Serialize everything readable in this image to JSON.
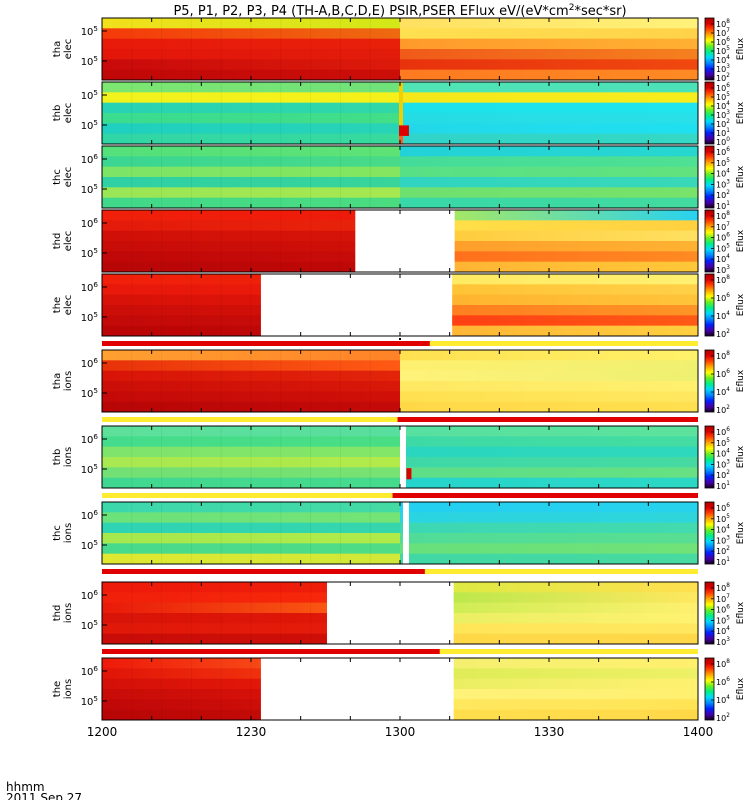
{
  "chart_data": {
    "type": "heatmap",
    "title": "P5, P1, P2, P3, P4 (TH-A,B,C,D,E) PSIR,PSER EFlux eV/(eV*cm",
    "title_sup": "2",
    "title_tail": "*sec*sr)",
    "x_tick_labels": [
      "1200",
      "1230",
      "1300",
      "1330",
      "1400"
    ],
    "x_ticks_min": [
      0,
      30,
      60,
      90,
      120
    ],
    "x_range_min": [
      0,
      120
    ],
    "x_caption": "hhmm",
    "date_caption": "2011 Sep 27",
    "colorbar_label": "Eflux",
    "panels": [
      {
        "name": "tha elec",
        "y_labels": [
          {
            "base": "10",
            "exp": "5"
          },
          {
            "base": "10",
            "exp": "5"
          }
        ],
        "gap_min": null,
        "left": {
          "c": "#dd1208",
          "bands": [
            [
              "#f2e01c",
              "#d2e818"
            ],
            [
              "#f53a0a",
              "#ee6a10"
            ],
            [
              "#e81a0a",
              "#e8200a"
            ],
            [
              "#e3160a",
              "#e21c0a"
            ],
            [
              "#c80a0a",
              "#dd1a0a"
            ],
            [
              "#c00808",
              "#cc0e08"
            ]
          ]
        },
        "right": {
          "c": "#fff27a",
          "bands": [
            [
              "#ffe060",
              "#fff27a"
            ],
            [
              "#ffe050",
              "#ffd24a"
            ],
            [
              "#ff9a2a",
              "#ffb032"
            ],
            [
              "#f05a1a",
              "#f5801e"
            ],
            [
              "#e8320d",
              "#f0480f"
            ],
            [
              "#ff7a20",
              "#ff8a24"
            ]
          ]
        },
        "spikes": []
      },
      {
        "name": "thb elec",
        "y_labels": [
          {
            "base": "10",
            "exp": "5"
          },
          {
            "base": "10",
            "exp": "5"
          }
        ],
        "gap_min": null,
        "left": {
          "c": "#3fe08a",
          "bands": [
            [
              "#7de670",
              "#70e27a"
            ],
            [
              "#f2f21c",
              "#f5f01a"
            ],
            [
              "#28d2b4",
              "#30d8a8"
            ],
            [
              "#3adc90",
              "#42de88"
            ],
            [
              "#1fd0c0",
              "#28d4b6"
            ],
            [
              "#30d6a6",
              "#38da9c"
            ]
          ]
        },
        "right": {
          "c": "#2ee0e0",
          "bands": [
            [
              "#50e4b4",
              "#4ce2b8"
            ],
            [
              "#f5e81a",
              "#f7ec1c"
            ],
            [
              "#1ce0ea",
              "#20e4ee"
            ],
            [
              "#26dce4",
              "#2ae0e8"
            ],
            [
              "#22d8e8",
              "#20e0f0"
            ],
            [
              "#30d4c8",
              "#34d8c4"
            ]
          ]
        },
        "spikes": [
          {
            "x": 59.8,
            "w": 0.8,
            "c": "#f0d000"
          },
          {
            "x": 59.8,
            "w": 2,
            "y0": 0.7,
            "y1": 0.87,
            "c": "#e00000"
          },
          {
            "x": 59.8,
            "w": 0.8,
            "y0": 0.87,
            "y1": 1,
            "c": "#ff6020"
          }
        ]
      },
      {
        "name": "thc elec",
        "y_labels": [
          {
            "base": "10",
            "exp": "6"
          },
          {
            "base": "10",
            "exp": "5"
          }
        ],
        "gap_min": null,
        "left": {
          "c": "#40de8c",
          "bands": [
            [
              "#54e07a",
              "#5ee276"
            ],
            [
              "#3ad692",
              "#48da88"
            ],
            [
              "#7ce466",
              "#84e660"
            ],
            [
              "#2ed0a4",
              "#38d49a"
            ],
            [
              "#9ae656",
              "#a6e850"
            ],
            [
              "#40d88a",
              "#4cdc80"
            ]
          ]
        },
        "right": {
          "c": "#38d8a8",
          "bands": [
            [
              "#22d2d8",
              "#28d6d0"
            ],
            [
              "#44dc9a",
              "#4ee094"
            ],
            [
              "#58e086",
              "#62e27e"
            ],
            [
              "#30d4c0",
              "#38d8b8"
            ],
            [
              "#6ee070",
              "#78e26a"
            ],
            [
              "#38d8a8",
              "#42da9e"
            ]
          ]
        },
        "spikes": []
      },
      {
        "name": "thd elec",
        "y_labels": [
          {
            "base": "10",
            "exp": "6"
          },
          {
            "base": "10",
            "exp": "5"
          }
        ],
        "gap_min": [
          51,
          71
        ],
        "left": {
          "c": "#d20c08",
          "bands": [
            [
              "#f0200a",
              "#ee1a0a"
            ],
            [
              "#e41a0a",
              "#e8240a"
            ],
            [
              "#d01008",
              "#d81408"
            ],
            [
              "#c80c08",
              "#d01008"
            ],
            [
              "#c00808",
              "#c80c08"
            ],
            [
              "#b80606",
              "#c00808"
            ]
          ]
        },
        "right": {
          "c": "#ffd040",
          "bands": [
            [
              "#c0ec48",
              "#28d2f0"
            ],
            [
              "#ffe24a",
              "#ffd040"
            ],
            [
              "#ffc836",
              "#ffe060"
            ],
            [
              "#ff9a2a",
              "#ffb232"
            ],
            [
              "#ff6a1a",
              "#ff8a22"
            ],
            [
              "#ffb032",
              "#ffc838"
            ]
          ]
        },
        "spikes": []
      },
      {
        "name": "the elec",
        "y_labels": [
          {
            "base": "10",
            "exp": "6"
          },
          {
            "base": "10",
            "exp": "5"
          }
        ],
        "gap_min": [
          32,
          70.5
        ],
        "left": {
          "c": "#d20c08",
          "bands": [
            [
              "#f0200a",
              "#ee200a"
            ],
            [
              "#e8180a",
              "#ea1c0a"
            ],
            [
              "#d81208",
              "#e01408"
            ],
            [
              "#cc0e08",
              "#d41008"
            ],
            [
              "#c40a08",
              "#c80c08"
            ],
            [
              "#ba0606",
              "#c20808"
            ]
          ]
        },
        "right": {
          "c": "#ffd040",
          "bands": [
            [
              "#ffe860",
              "#fff070"
            ],
            [
              "#ffc032",
              "#ffd048"
            ],
            [
              "#ffb02c",
              "#ffc43a"
            ],
            [
              "#ff7a1e",
              "#ff9426"
            ],
            [
              "#ff3a12",
              "#ff5a16"
            ],
            [
              "#ffb032",
              "#ffd040"
            ]
          ]
        },
        "spikes": []
      },
      {
        "name": "tha ions",
        "y_labels": [
          {
            "base": "10",
            "exp": "6"
          },
          {
            "base": "10",
            "exp": "5"
          }
        ],
        "gap_min": null,
        "left": {
          "c": "#d21008",
          "bands": [
            [
              "#ffa030",
              "#ff8228"
            ],
            [
              "#e8320a",
              "#ff5a14"
            ],
            [
              "#d81408",
              "#e2240a"
            ],
            [
              "#cc0e08",
              "#d81808"
            ],
            [
              "#c40a08",
              "#d01008"
            ],
            [
              "#b80606",
              "#c40a08"
            ]
          ]
        },
        "right": {
          "c": "#fff070",
          "bands": [
            [
              "#ffe050",
              "#fff26a"
            ],
            [
              "#fff070",
              "#f0f070"
            ],
            [
              "#fff27a",
              "#eef070"
            ],
            [
              "#ffe862",
              "#fff06e"
            ],
            [
              "#ffe050",
              "#ffe860"
            ],
            [
              "#ffd848",
              "#ffe050"
            ]
          ]
        },
        "spikes": []
      },
      {
        "name": "thb ions",
        "y_labels": [
          {
            "base": "10",
            "exp": "6"
          },
          {
            "base": "10",
            "exp": "5"
          }
        ],
        "gap_min": [
          60,
          61.2
        ],
        "left": {
          "c": "#48d888",
          "bands": [
            [
              "#5ee09a",
              "#58de9e"
            ],
            [
              "#44dc8c",
              "#4ade84"
            ],
            [
              "#7ee46c",
              "#84e668"
            ],
            [
              "#a8e850",
              "#b2ea4a"
            ],
            [
              "#72e074",
              "#78e272"
            ],
            [
              "#40d890",
              "#46da8c"
            ]
          ]
        },
        "right": {
          "c": "#34dcb0",
          "bands": [
            [
              "#58e0a0",
              "#5ce29c"
            ],
            [
              "#3edaa6",
              "#44dca2"
            ],
            [
              "#2ad6c0",
              "#2ed8bc"
            ],
            [
              "#3ed8a8",
              "#46daa2"
            ],
            [
              "#5ede88",
              "#66e082"
            ],
            [
              "#26d4cc",
              "#2cd8c4"
            ]
          ]
        },
        "spikes": [
          {
            "x": 61.3,
            "w": 1,
            "y0": 0.68,
            "y1": 0.86,
            "c": "#d80000"
          }
        ]
      },
      {
        "name": "thc ions",
        "y_labels": [
          {
            "base": "10",
            "exp": "6"
          },
          {
            "base": "10",
            "exp": "5"
          }
        ],
        "gap_min": [
          60.6,
          61.8
        ],
        "left": {
          "c": "#40d890",
          "bands": [
            [
              "#3cd8ac",
              "#44daa4"
            ],
            [
              "#6ce27a",
              "#74e476"
            ],
            [
              "#2ed4b4",
              "#36d6ac"
            ],
            [
              "#a6e84e",
              "#b0ea48"
            ],
            [
              "#48da8c",
              "#50dc86"
            ],
            [
              "#e0e830",
              "#d0e838"
            ]
          ]
        },
        "right": {
          "c": "#30d0d8",
          "bands": [
            [
              "#24d0f0",
              "#26d2ec"
            ],
            [
              "#2ad4e0",
              "#2ed6dc"
            ],
            [
              "#3cd8b4",
              "#42daae"
            ],
            [
              "#50dc98",
              "#58de92"
            ],
            [
              "#68e07c",
              "#70e278"
            ],
            [
              "#40d8a4",
              "#48daa0"
            ]
          ]
        },
        "spikes": []
      },
      {
        "name": "thd ions",
        "y_labels": [
          {
            "base": "10",
            "exp": "6"
          },
          {
            "base": "10",
            "exp": "5"
          }
        ],
        "gap_min": [
          45.3,
          70.8
        ],
        "left": {
          "c": "#e01408",
          "bands": [
            [
              "#ee1a0a",
              "#ee1e0a"
            ],
            [
              "#f0200a",
              "#f82a0a"
            ],
            [
              "#e81a0a",
              "#ff6a14"
            ],
            [
              "#d81408",
              "#e01808"
            ],
            [
              "#e01808",
              "#e61c0a"
            ],
            [
              "#c80c08",
              "#d01008"
            ]
          ]
        },
        "right": {
          "c": "#f0ec5a",
          "bands": [
            [
              "#d6ec40",
              "#ffe050"
            ],
            [
              "#aee848",
              "#ffe860"
            ],
            [
              "#c4ec50",
              "#fff06e"
            ],
            [
              "#e6ee60",
              "#fff270"
            ],
            [
              "#ffe456",
              "#ffe860"
            ],
            [
              "#ffd848",
              "#ffd84a"
            ]
          ]
        },
        "spikes": []
      },
      {
        "name": "the ions",
        "y_labels": [
          {
            "base": "10",
            "exp": "6"
          },
          {
            "base": "10",
            "exp": "5"
          }
        ],
        "gap_min": [
          32,
          70.8
        ],
        "left": {
          "c": "#d40e08",
          "bands": [
            [
              "#ee1a0a",
              "#ff7020"
            ],
            [
              "#e01408",
              "#ff4a12"
            ],
            [
              "#d41008",
              "#ee1c0a"
            ],
            [
              "#c80c08",
              "#e0140a"
            ],
            [
              "#c00808",
              "#d81208"
            ],
            [
              "#b80606",
              "#cc0e08"
            ]
          ]
        },
        "right": {
          "c": "#fff070",
          "bands": [
            [
              "#f2ef70",
              "#fff06e"
            ],
            [
              "#dcec54",
              "#eef066"
            ],
            [
              "#e6ee60",
              "#fff070"
            ],
            [
              "#fff27a",
              "#fff070"
            ],
            [
              "#ffe860",
              "#ffe456"
            ],
            [
              "#ffe050",
              "#ffd848"
            ]
          ]
        },
        "spikes": []
      }
    ],
    "colorbars": [
      [
        {
          "b": "10",
          "e": "8"
        },
        {
          "b": "10",
          "e": "7"
        },
        {
          "b": "10",
          "e": "6"
        },
        {
          "b": "10",
          "e": "5"
        },
        {
          "b": "10",
          "e": "4"
        },
        {
          "b": "10",
          "e": "3"
        },
        {
          "b": "10",
          "e": "2"
        }
      ],
      [
        {
          "b": "10",
          "e": "6"
        },
        {
          "b": "10",
          "e": "5"
        },
        {
          "b": "10",
          "e": "4"
        },
        {
          "b": "10",
          "e": "3"
        },
        {
          "b": "10",
          "e": "2"
        },
        {
          "b": "10",
          "e": "1"
        },
        {
          "b": "10",
          "e": "0"
        }
      ],
      [
        {
          "b": "10",
          "e": "6"
        },
        {
          "b": "10",
          "e": "5"
        },
        {
          "b": "10",
          "e": "4"
        },
        {
          "b": "10",
          "e": "3"
        },
        {
          "b": "10",
          "e": "2"
        },
        {
          "b": "10",
          "e": "1"
        }
      ],
      [
        {
          "b": "10",
          "e": "8"
        },
        {
          "b": "10",
          "e": "7"
        },
        {
          "b": "10",
          "e": "6"
        },
        {
          "b": "10",
          "e": "5"
        },
        {
          "b": "10",
          "e": "4"
        },
        {
          "b": "10",
          "e": "3"
        }
      ],
      [
        {
          "b": "10",
          "e": "8"
        },
        {
          "b": "10",
          "e": "6"
        },
        {
          "b": "10",
          "e": "4"
        },
        {
          "b": "10",
          "e": "2"
        }
      ],
      [
        {
          "b": "10",
          "e": "8"
        },
        {
          "b": "10",
          "e": "6"
        },
        {
          "b": "10",
          "e": "4"
        },
        {
          "b": "10",
          "e": "2"
        }
      ],
      [
        {
          "b": "10",
          "e": "6"
        },
        {
          "b": "10",
          "e": "5"
        },
        {
          "b": "10",
          "e": "4"
        },
        {
          "b": "10",
          "e": "3"
        },
        {
          "b": "10",
          "e": "2"
        },
        {
          "b": "10",
          "e": "1"
        }
      ],
      [
        {
          "b": "10",
          "e": "6"
        },
        {
          "b": "10",
          "e": "5"
        },
        {
          "b": "10",
          "e": "4"
        },
        {
          "b": "10",
          "e": "3"
        },
        {
          "b": "10",
          "e": "2"
        },
        {
          "b": "10",
          "e": "1"
        }
      ],
      [
        {
          "b": "10",
          "e": "8"
        },
        {
          "b": "10",
          "e": "7"
        },
        {
          "b": "10",
          "e": "6"
        },
        {
          "b": "10",
          "e": "5"
        },
        {
          "b": "10",
          "e": "4"
        },
        {
          "b": "10",
          "e": "3"
        }
      ],
      [
        {
          "b": "10",
          "e": "8"
        },
        {
          "b": "10",
          "e": "6"
        },
        {
          "b": "10",
          "e": "4"
        },
        {
          "b": "10",
          "e": "2"
        }
      ]
    ],
    "mode_bars": [
      {
        "after_panel": 4,
        "red_to_min": 66,
        "marker_min": 60
      },
      {
        "after_panel": 5,
        "red_from_min": 59.5
      },
      {
        "after_panel": 6,
        "red_from_min": 58.5
      },
      {
        "after_panel": 7,
        "red_to_min": 65
      },
      {
        "after_panel": 8,
        "red_to_min": 68
      }
    ],
    "colormap": [
      "#1a0028",
      "#4400aa",
      "#0022ff",
      "#0088ff",
      "#00d8ff",
      "#00ee88",
      "#66ee22",
      "#ffff00",
      "#ffaa00",
      "#ff4400",
      "#dd0000",
      "#aa0000"
    ]
  }
}
